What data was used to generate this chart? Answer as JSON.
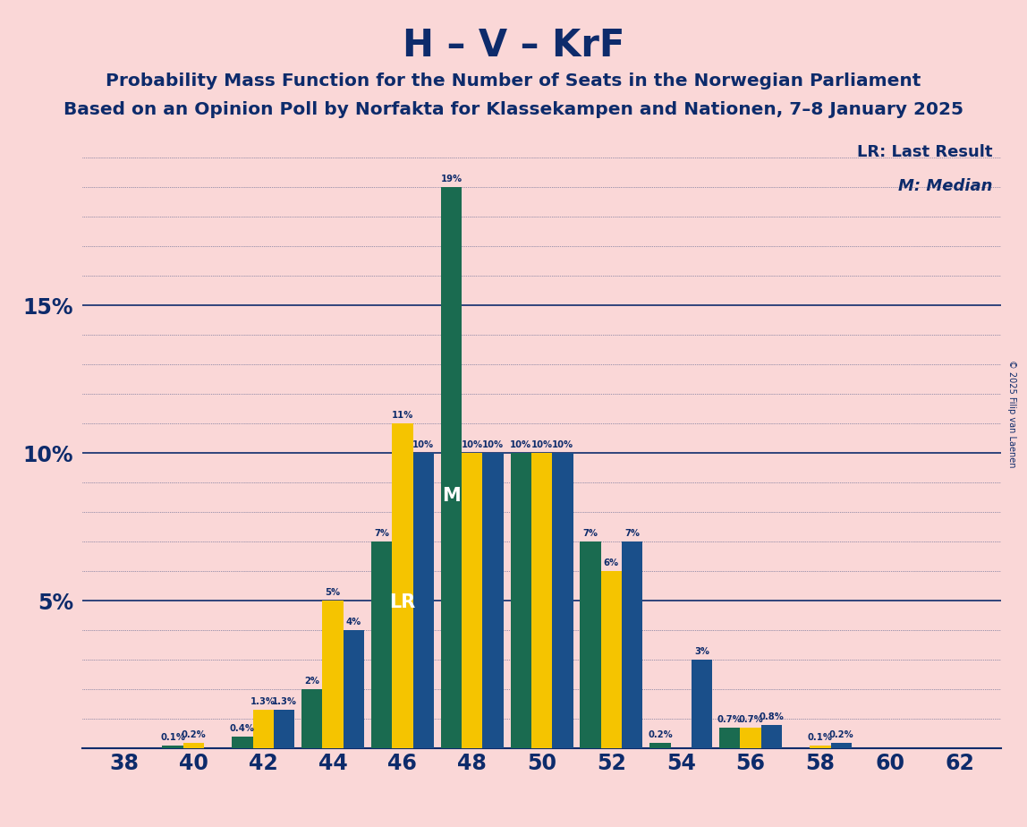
{
  "title": "H – V – KrF",
  "subtitle1": "Probability Mass Function for the Number of Seats in the Norwegian Parliament",
  "subtitle2": "Based on an Opinion Poll by Norfakta for Klassekampen and Nationen, 7–8 January 2025",
  "copyright": "© 2025 Filip van Laenen",
  "legend_lr": "LR: Last Result",
  "legend_m": "M: Median",
  "background_color": "#fad7d7",
  "bar_color_blue": "#1a4f8a",
  "bar_color_teal": "#1a6b50",
  "bar_color_gold": "#f5c400",
  "title_color": "#0d2b6b",
  "text_color": "#0d2b6b",
  "seats": [
    38,
    40,
    42,
    44,
    46,
    48,
    50,
    52,
    54,
    56,
    58,
    60,
    62
  ],
  "teal_values": [
    0.0,
    0.1,
    0.4,
    2.0,
    7.0,
    19.0,
    10.0,
    7.0,
    0.2,
    0.7,
    0.0,
    0.0,
    0.0
  ],
  "gold_values": [
    0.0,
    0.2,
    1.3,
    5.0,
    11.0,
    10.0,
    10.0,
    6.0,
    0.0,
    0.7,
    0.1,
    0.0,
    0.0
  ],
  "blue_values": [
    0.0,
    0.0,
    1.3,
    4.0,
    10.0,
    10.0,
    10.0,
    7.0,
    3.0,
    0.8,
    0.2,
    0.0,
    0.0
  ],
  "teal_labels": [
    "0%",
    "0.1%",
    "0.4%",
    "2%",
    "7%",
    "19%",
    "10%",
    "7%",
    "0.2%",
    "0.7%",
    "0%",
    "0%",
    "0%"
  ],
  "gold_labels": [
    "0%",
    "0.2%",
    "1.3%",
    "5%",
    "11%",
    "10%",
    "10%",
    "6%",
    "0%",
    "0.7%",
    "0.1%",
    "0%",
    "0%"
  ],
  "blue_labels": [
    "0%",
    "0%",
    "1.3%",
    "4%",
    "10%",
    "10%",
    "10%",
    "7%",
    "3%",
    "0.8%",
    "0.2%",
    "0%",
    "0%"
  ],
  "lr_seat_idx": 4,
  "median_seat_idx": 4,
  "ylim": [
    0,
    21
  ],
  "yticks": [
    0,
    5,
    10,
    15
  ],
  "ytick_labels": [
    "",
    "5%",
    "10%",
    "15%"
  ]
}
